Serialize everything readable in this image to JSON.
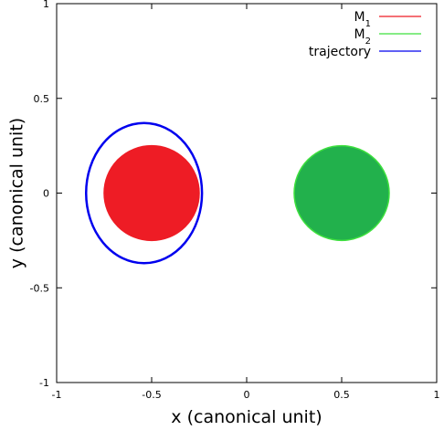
{
  "chart_data": {
    "type": "line",
    "xlabel": "x (canonical unit)",
    "ylabel": "y (canonical unit)",
    "xlim": [
      -1,
      1
    ],
    "ylim": [
      -1,
      1
    ],
    "x_ticks": [
      {
        "value": -1,
        "label": "-1"
      },
      {
        "value": -0.5,
        "label": "-0.5"
      },
      {
        "value": 0,
        "label": "0"
      },
      {
        "value": 0.5,
        "label": "0.5"
      },
      {
        "value": 1,
        "label": "1"
      }
    ],
    "y_ticks": [
      {
        "value": -1,
        "label": "-1"
      },
      {
        "value": -0.5,
        "label": "-0.5"
      },
      {
        "value": 0,
        "label": "0"
      },
      {
        "value": 0.5,
        "label": "0.5"
      },
      {
        "value": 1,
        "label": "1"
      }
    ],
    "grid": false,
    "legend_position": "top-right",
    "series": [
      {
        "name": "M",
        "name_sub": "1",
        "kind": "filled_circle",
        "center": [
          -0.5,
          0
        ],
        "radius": 0.25,
        "color": "#ee1c25",
        "fill": "#ee1c25"
      },
      {
        "name": "M",
        "name_sub": "2",
        "kind": "filled_circle",
        "center": [
          0.5,
          0
        ],
        "radius": 0.25,
        "color": "#3ee03e",
        "fill": "#22b14c"
      },
      {
        "name": "trajectory",
        "kind": "ellipse_path",
        "center": [
          -0.54,
          0
        ],
        "rx": 0.305,
        "ry": 0.37,
        "color": "#0000ee"
      }
    ]
  }
}
